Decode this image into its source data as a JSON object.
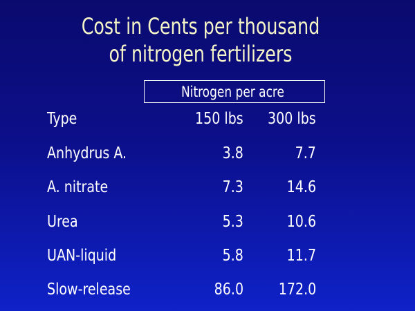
{
  "title": {
    "line1": "Cost in Cents per thousand",
    "line2": "of nitrogen fertilizers"
  },
  "table": {
    "group_header": "Nitrogen  per acre",
    "columns": [
      "Type",
      "150 lbs",
      "300 lbs"
    ],
    "rows": [
      {
        "type": "Anhydrus A.",
        "v150": "3.8",
        "v300": "7.7"
      },
      {
        "type": "A. nitrate",
        "v150": "7.3",
        "v300": "14.6"
      },
      {
        "type": "Urea",
        "v150": "5.3",
        "v300": "10.6"
      },
      {
        "type": "UAN-liquid",
        "v150": "5.8",
        "v300": "11.7"
      },
      {
        "type": "Slow-release",
        "v150": "86.0",
        "v300": "172.0"
      }
    ]
  },
  "colors": {
    "background_top": "#0a0a6e",
    "background_bottom": "#0f22c8",
    "title_text": "#f4f4c8",
    "body_text": "#ffffff"
  }
}
